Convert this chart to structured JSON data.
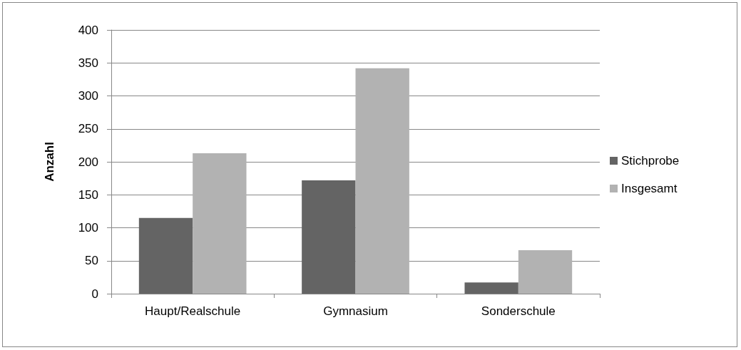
{
  "chart_data": {
    "type": "bar",
    "ylabel": "Anzahl",
    "categories": [
      "Haupt/Realschule",
      "Gymnasium",
      "Sonderschule"
    ],
    "series": [
      {
        "name": "Stichprobe",
        "color": "#646464",
        "values": [
          115,
          172,
          17
        ]
      },
      {
        "name": "Insgesamt",
        "color": "#b2b2b2",
        "values": [
          213,
          342,
          66
        ]
      }
    ],
    "ylim": [
      0,
      400
    ],
    "yticks": [
      0,
      50,
      100,
      150,
      200,
      250,
      300,
      350,
      400
    ],
    "grid": "y",
    "legend": "right"
  }
}
